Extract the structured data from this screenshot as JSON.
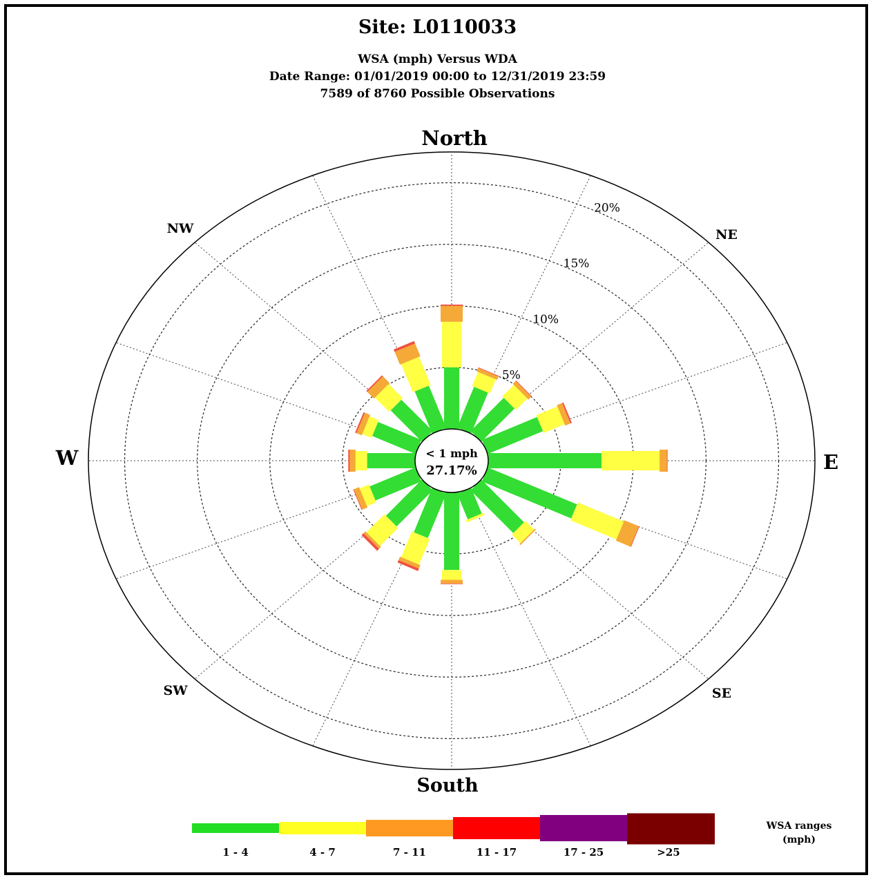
{
  "title": "Site: L0110033",
  "subtitle1": "WSA (mph) Versus WDA",
  "subtitle2": "Date Range: 01/01/2019 00:00 to 12/31/2019 23:59",
  "subtitle3": "7589 of 8760 Possible Observations",
  "directions": {
    "N": "North",
    "S": "South",
    "E": "E",
    "W": "W",
    "NE": "NE",
    "NW": "NW",
    "SE": "SE",
    "SW": "SW"
  },
  "center": {
    "label": "< 1 mph",
    "value": "27.17%"
  },
  "legend": {
    "title_line1": "WSA ranges",
    "title_line2": "(mph)",
    "items": [
      {
        "label": "1 - 4",
        "color": "#22dd22"
      },
      {
        "label": "4 - 7",
        "color": "#ffff22"
      },
      {
        "label": "7 - 11",
        "color": "#ff9922"
      },
      {
        "label": "11 - 17",
        "color": "#ff0000"
      },
      {
        "label": "17 - 25",
        "color": "#800080"
      },
      {
        "label": ">25",
        "color": "#7a0000"
      }
    ]
  },
  "chart_data": {
    "type": "wind-rose",
    "radial_unit": "%",
    "radial_ticks": [
      {
        "value": 5,
        "label": "5%"
      },
      {
        "value": 10,
        "label": "10%"
      },
      {
        "value": 15,
        "label": "15%"
      },
      {
        "value": 20,
        "label": "20%"
      }
    ],
    "radial_max": 22.5,
    "calm_label": "< 1 mph",
    "calm_percent": 27.17,
    "directions_deg": [
      0,
      22.5,
      45,
      67.5,
      90,
      112.5,
      135,
      157.5,
      180,
      202.5,
      225,
      247.5,
      270,
      292.5,
      315,
      337.5
    ],
    "series": [
      {
        "name": "1 - 4",
        "color": "#22dd22",
        "values": [
          5.0,
          3.5,
          3.5,
          4.2,
          7.8,
          6.8,
          4.5,
          2.2,
          6.3,
          3.8,
          3.8,
          3.5,
          3.3,
          3.3,
          3.3,
          3.6
        ]
      },
      {
        "name": "4 - 7",
        "color": "#ffff22",
        "values": [
          3.7,
          1.2,
          1.2,
          1.6,
          4.0,
          3.5,
          0.9,
          0.2,
          0.8,
          2.2,
          1.9,
          0.7,
          0.8,
          0.7,
          1.5,
          2.4
        ]
      },
      {
        "name": "7 - 11",
        "color": "#ff9922",
        "values": [
          1.3,
          0.3,
          0.3,
          0.4,
          0.5,
          1.1,
          0.1,
          0.0,
          0.3,
          0.3,
          0.2,
          0.4,
          0.4,
          0.4,
          0.7,
          1.1
        ]
      },
      {
        "name": "11 - 17",
        "color": "#ff0000",
        "values": [
          0.1,
          0.05,
          0.05,
          0.1,
          0.05,
          0.05,
          0.0,
          0.0,
          0.05,
          0.2,
          0.2,
          0.05,
          0.1,
          0.1,
          0.1,
          0.2
        ]
      },
      {
        "name": "17 - 25",
        "color": "#800080",
        "values": [
          0,
          0,
          0,
          0,
          0,
          0,
          0,
          0,
          0,
          0,
          0,
          0,
          0,
          0,
          0,
          0
        ]
      },
      {
        "name": ">25",
        "color": "#7a0000",
        "values": [
          0,
          0,
          0,
          0,
          0,
          0,
          0,
          0,
          0,
          0,
          0,
          0,
          0,
          0,
          0,
          0
        ]
      }
    ]
  }
}
